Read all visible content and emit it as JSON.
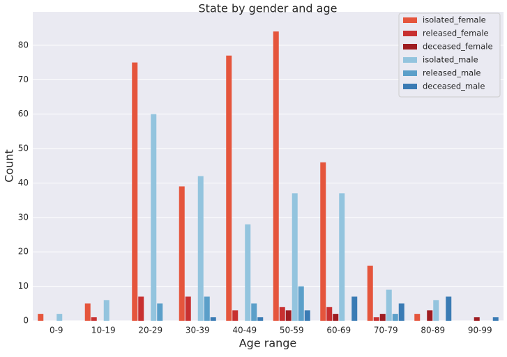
{
  "chart_data": {
    "type": "bar",
    "title": "State by gender and age",
    "x_label": "Age range",
    "y_label": "Count",
    "categories": [
      "0-9",
      "10-19",
      "20-29",
      "30-39",
      "40-49",
      "50-59",
      "60-69",
      "70-79",
      "80-89",
      "90-99"
    ],
    "series": [
      {
        "name": "isolated_female",
        "color": "#e5553c",
        "values": [
          2,
          5,
          75,
          39,
          77,
          84,
          46,
          16,
          2,
          0
        ]
      },
      {
        "name": "released_female",
        "color": "#c83030",
        "values": [
          0,
          1,
          7,
          7,
          3,
          4,
          4,
          1,
          0,
          0
        ]
      },
      {
        "name": "deceased_female",
        "color": "#9e1c21",
        "values": [
          0,
          0,
          0,
          0,
          0,
          3,
          2,
          2,
          3,
          1
        ]
      },
      {
        "name": "isolated_male",
        "color": "#93c4de",
        "values": [
          2,
          6,
          60,
          42,
          28,
          37,
          37,
          9,
          6,
          0
        ]
      },
      {
        "name": "released_male",
        "color": "#5b9fc9",
        "values": [
          0,
          0,
          5,
          7,
          5,
          10,
          0,
          2,
          0,
          0
        ]
      },
      {
        "name": "deceased_male",
        "color": "#3a7bb4",
        "values": [
          0,
          0,
          0,
          1,
          1,
          3,
          7,
          5,
          7,
          1
        ]
      }
    ],
    "ylim": [
      0,
      89.7
    ],
    "yticks": [
      0,
      10,
      20,
      30,
      40,
      50,
      60,
      70,
      80
    ],
    "grid": true,
    "legend": "upper right"
  }
}
